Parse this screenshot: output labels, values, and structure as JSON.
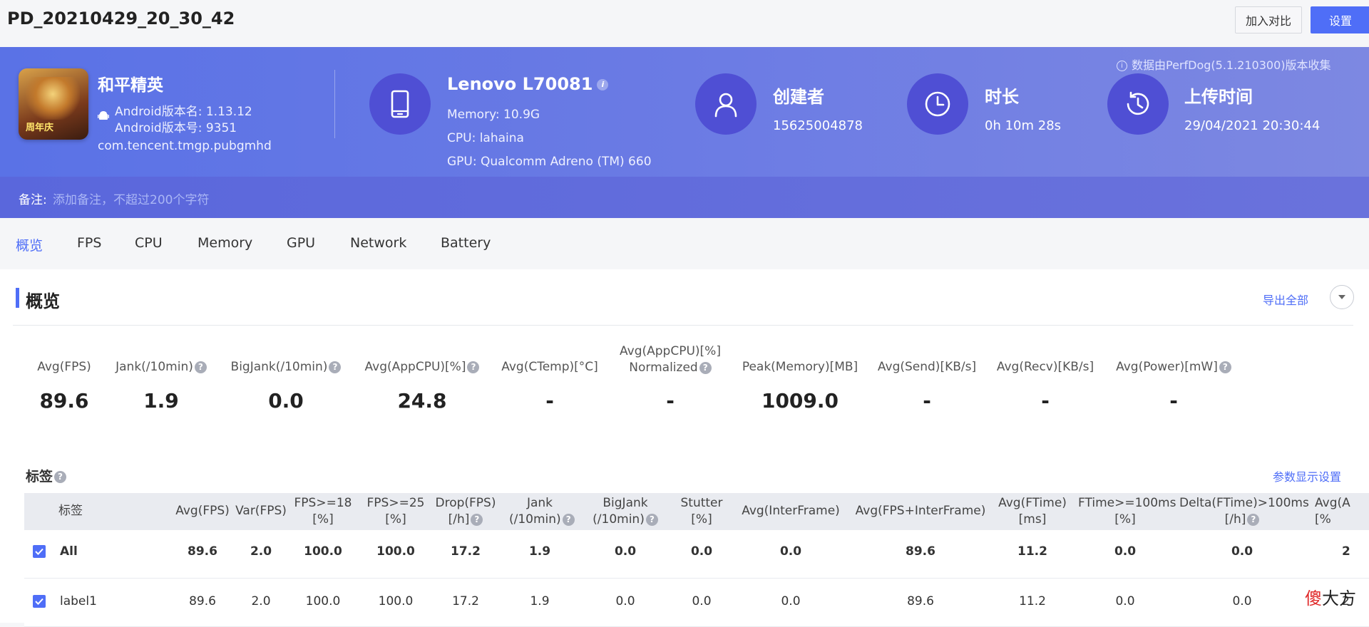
{
  "header": {
    "title": "PD_20210429_20_30_42",
    "compare_label": "加入对比",
    "settings_label": "设置"
  },
  "banner": {
    "source_note": "数据由PerfDog(5.1.210300)版本收集",
    "app": {
      "icon_text": "周年庆",
      "name": "和平精英",
      "version_name": "Android版本名: 1.13.12",
      "version_code": "Android版本号: 9351",
      "package": "com.tencent.tmgp.pubgmhd"
    },
    "device": {
      "name": "Lenovo L70081",
      "memory": "Memory: 10.9G",
      "cpu": "CPU: lahaina",
      "gpu": "GPU: Qualcomm Adreno (TM) 660"
    },
    "creator": {
      "title": "创建者",
      "value": "15625004878"
    },
    "duration": {
      "title": "时长",
      "value": "0h 10m 28s"
    },
    "upload": {
      "title": "上传时间",
      "value": "29/04/2021 20:30:44"
    },
    "note_label": "备注:",
    "note_placeholder": "添加备注，不超过200个字符"
  },
  "tabs": [
    "概览",
    "FPS",
    "CPU",
    "Memory",
    "GPU",
    "Network",
    "Battery"
  ],
  "overview": {
    "title": "概览",
    "export_label": "导出全部",
    "metrics": [
      {
        "label": "Avg(FPS)",
        "value": "89.6"
      },
      {
        "label": "Jank(/10min)",
        "value": "1.9"
      },
      {
        "label": "BigJank(/10min)",
        "value": "0.0"
      },
      {
        "label": "Avg(AppCPU)[%]",
        "value": "24.8"
      },
      {
        "label": "Avg(CTemp)[°C]",
        "value": "-"
      },
      {
        "label": "Avg(AppCPU)[%] Normalized",
        "label_line1": "Avg(AppCPU)[%]",
        "label_line2": "Normalized",
        "value": "-"
      },
      {
        "label": "Peak(Memory)[MB]",
        "value": "1009.0"
      },
      {
        "label": "Avg(Send)[KB/s]",
        "value": "-"
      },
      {
        "label": "Avg(Recv)[KB/s]",
        "value": "-"
      },
      {
        "label": "Avg(Power)[mW]",
        "value": "-"
      }
    ]
  },
  "labels": {
    "title": "标签",
    "param_settings": "参数显示设置",
    "columns": {
      "label": "标签",
      "avg_fps": "Avg(FPS)",
      "var_fps": "Var(FPS)",
      "fps18_1": "FPS>=18",
      "fps18_2": "[%]",
      "fps25_1": "FPS>=25",
      "fps25_2": "[%]",
      "drop_1": "Drop(FPS)",
      "drop_2": "[/h]",
      "jank_1": "Jank",
      "jank_2": "(/10min)",
      "bigjank_1": "BigJank",
      "bigjank_2": "(/10min)",
      "stutter_1": "Stutter",
      "stutter_2": "[%]",
      "avg_inter": "Avg(InterFrame)",
      "avg_fps_inter": "Avg(FPS+InterFrame)",
      "avg_ftime_1": "Avg(FTime)",
      "avg_ftime_2": "[ms]",
      "ftime100_1": "FTime>=100ms",
      "ftime100_2": "[%]",
      "delta_1": "Delta(FTime)>100ms",
      "delta_2": "[/h]",
      "avg_cut_1": "Avg(A",
      "avg_cut_2": "[%"
    },
    "rows": [
      {
        "name": "All",
        "avg_fps": "89.6",
        "var_fps": "2.0",
        "fps18": "100.0",
        "fps25": "100.0",
        "drop": "17.2",
        "jank": "1.9",
        "bigjank": "0.0",
        "stutter": "0.0",
        "inter": "0.0",
        "fps_inter": "89.6",
        "ftime": "11.2",
        "ftime100": "0.0",
        "delta": "0.0",
        "cut": "2"
      },
      {
        "name": "label1",
        "avg_fps": "89.6",
        "var_fps": "2.0",
        "fps18": "100.0",
        "fps25": "100.0",
        "drop": "17.2",
        "jank": "1.9",
        "bigjank": "0.0",
        "stutter": "0.0",
        "inter": "0.0",
        "fps_inter": "89.6",
        "ftime": "11.2",
        "ftime100": "0.0",
        "delta": "0.0",
        "cut": "2"
      }
    ]
  },
  "watermark": {
    "red": "傻",
    "black": "大方"
  }
}
